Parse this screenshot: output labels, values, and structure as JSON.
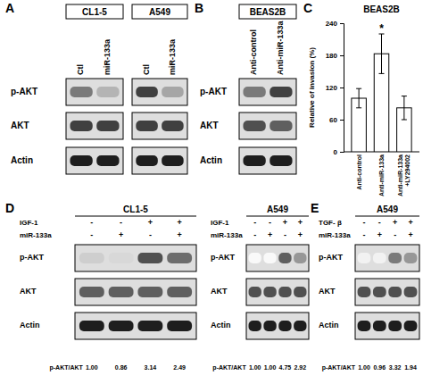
{
  "panels": [
    {
      "label": "A",
      "blots": [
        {
          "title": "CL1-5",
          "lanes": [
            "Ctl",
            "miR-133a"
          ],
          "rows": [
            "p-AKT",
            "AKT",
            "Actin"
          ],
          "intensity": [
            [
              0.6,
              0.4
            ],
            [
              0.8,
              0.8
            ],
            [
              0.9,
              0.9
            ]
          ]
        },
        {
          "title": "A549",
          "lanes": [
            "Ctl",
            "miR-133a"
          ],
          "intensity": [
            [
              0.8,
              0.45
            ],
            [
              0.8,
              0.8
            ],
            [
              0.9,
              0.9
            ]
          ]
        }
      ]
    },
    {
      "label": "B",
      "blots": [
        {
          "title": "BEAS2B",
          "lanes": [
            "Anti-control",
            "Anti-miR-133a"
          ],
          "rows": [
            "p-AKT",
            "AKT",
            "Actin"
          ],
          "intensity": [
            [
              0.6,
              0.8
            ],
            [
              0.75,
              0.7
            ],
            [
              0.9,
              0.9
            ]
          ]
        }
      ]
    },
    {
      "label": "C"
    },
    {
      "label": "D",
      "blots": [
        {
          "title": "CL1-5",
          "conditions": [
            {
              "name": "IGF-1",
              "signs": [
                "-",
                "-",
                "+",
                "+"
              ]
            },
            {
              "name": "miR-133a",
              "signs": [
                "-",
                "+",
                "-",
                "+"
              ]
            }
          ],
          "rows": [
            "p-AKT",
            "AKT",
            "Actin"
          ],
          "intensity": [
            [
              0.3,
              0.25,
              0.75,
              0.65
            ],
            [
              0.7,
              0.7,
              0.7,
              0.7
            ],
            [
              0.9,
              0.9,
              0.9,
              0.9
            ]
          ],
          "ratio": {
            "label": "p-AKT/AKT",
            "values": [
              "1.00",
              "0.86",
              "3.14",
              "2.49"
            ]
          }
        },
        {
          "title": "A549",
          "conditions": [
            {
              "name": "IGF-1",
              "signs": [
                "-",
                "-",
                "+",
                "+"
              ]
            },
            {
              "name": "miR-133a",
              "signs": [
                "-",
                "+",
                "-",
                "+"
              ]
            }
          ],
          "rows": [
            "p-AKT",
            "AKT",
            "Actin"
          ],
          "intensity": [
            [
              0.05,
              0.05,
              0.7,
              0.5
            ],
            [
              0.75,
              0.75,
              0.75,
              0.75
            ],
            [
              0.9,
              0.9,
              0.9,
              0.9
            ]
          ],
          "ratio": {
            "label": "p-AKT/AKT",
            "values": [
              "1.00",
              "1.00",
              "4.75",
              "2.92"
            ]
          }
        }
      ]
    },
    {
      "label": "E",
      "blots": [
        {
          "title": "A549",
          "conditions": [
            {
              "name": "TGF- β",
              "signs": [
                "-",
                "-",
                "+",
                "+"
              ]
            },
            {
              "name": "miR-133a",
              "signs": [
                "-",
                "+",
                "-",
                "+"
              ]
            }
          ],
          "rows": [
            "p-AKT",
            "AKT",
            "Actin"
          ],
          "intensity": [
            [
              0.1,
              0.1,
              0.6,
              0.5
            ],
            [
              0.75,
              0.75,
              0.75,
              0.75
            ],
            [
              0.9,
              0.9,
              0.9,
              0.9
            ]
          ],
          "ratio": {
            "label": "p-AKT/AKT",
            "values": [
              "1.00",
              "0.96",
              "3.32",
              "1.94"
            ]
          }
        }
      ]
    }
  ],
  "chart_data": {
    "type": "bar",
    "title": "BEAS2B",
    "y_label": "Relative of invasion (%)",
    "categories": [
      "Anti-control",
      "Anti-miR-133a",
      "Anti-miR-133a +LY294002"
    ],
    "values": [
      100,
      183,
      82
    ],
    "errors": [
      18,
      37,
      22
    ],
    "color": "#ffffff",
    "ylim": [
      0,
      240
    ],
    "yticks": [
      0,
      60,
      120,
      180,
      240
    ],
    "annotations": [
      {
        "text": "*",
        "category": "Anti-miR-133a"
      }
    ]
  }
}
